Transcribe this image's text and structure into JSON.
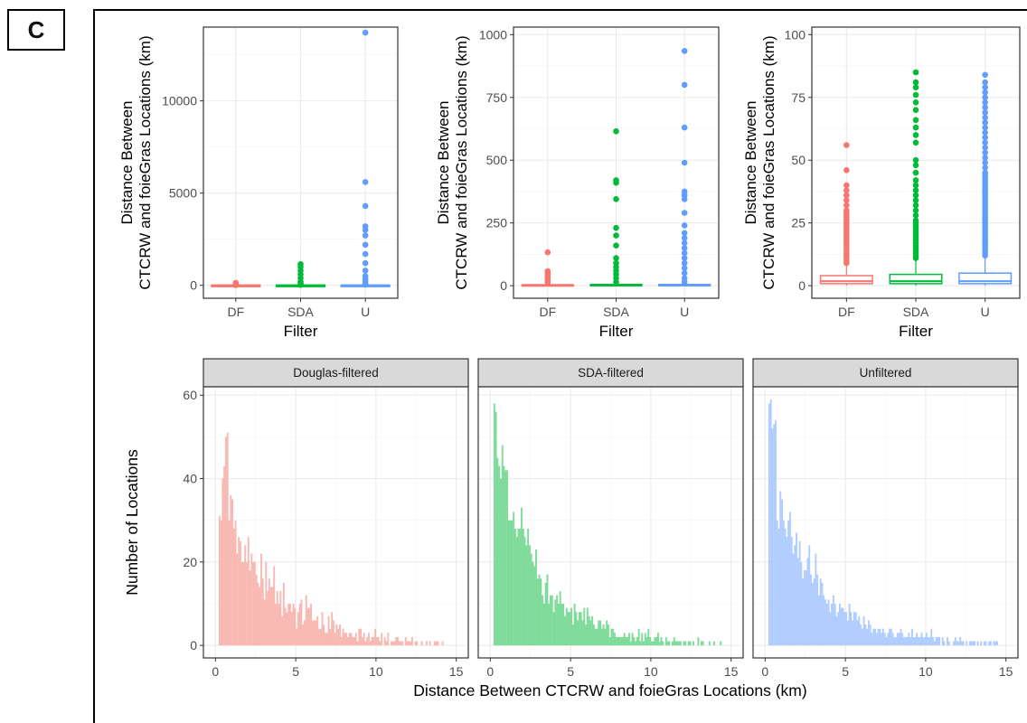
{
  "panel_label": "C",
  "colors": {
    "DF": "#f8766d",
    "SDA": "#00ba38",
    "U": "#619cff",
    "DF_fill": "#f8b9b3",
    "SDA_fill": "#7fdb9a",
    "U_fill": "#b0cdfe",
    "grid": "#ebebeb",
    "strip": "#d9d9d9"
  },
  "chart_data": [
    {
      "type": "box",
      "xlabel": "Filter",
      "ylabel": [
        "Distance Between",
        "CTCRW and foieGras Locations (km)"
      ],
      "categories": [
        "DF",
        "SDA",
        "U"
      ],
      "ylim": [
        -700,
        14000
      ],
      "yticks": [
        0,
        5000,
        10000
      ],
      "series": [
        {
          "category": "DF",
          "q1": 1,
          "median": 2,
          "q3": 4,
          "whisker_low": 0,
          "whisker_high": 8,
          "outliers": [
            10,
            20,
            35,
            56,
            80,
            110,
            135
          ]
        },
        {
          "category": "SDA",
          "q1": 1,
          "median": 2,
          "q3": 5,
          "whisker_low": 0,
          "whisker_high": 10,
          "outliers": [
            20,
            50,
            100,
            200,
            400,
            600,
            800,
            1000,
            1150
          ]
        },
        {
          "category": "U",
          "q1": 1,
          "median": 2,
          "q3": 5,
          "whisker_low": 0,
          "whisker_high": 10,
          "outliers": [
            30,
            80,
            200,
            350,
            500,
            800,
            1200,
            1700,
            2200,
            2700,
            3000,
            3200,
            4300,
            5600,
            13700
          ]
        }
      ]
    },
    {
      "type": "box",
      "xlabel": "Filter",
      "ylabel": [
        "Distance Between",
        "CTCRW and foieGras Locations (km)"
      ],
      "categories": [
        "DF",
        "SDA",
        "U"
      ],
      "ylim": [
        -50,
        1030
      ],
      "yticks": [
        0,
        250,
        500,
        750,
        1000
      ],
      "series": [
        {
          "category": "DF",
          "q1": 1,
          "median": 2,
          "q3": 4,
          "whisker_low": 0,
          "whisker_high": 8,
          "outliers": [
            12,
            20,
            28,
            35,
            45,
            52,
            58,
            133
          ]
        },
        {
          "category": "SDA",
          "q1": 1,
          "median": 2,
          "q3": 5,
          "whisker_low": 0,
          "whisker_high": 10,
          "outliers": [
            15,
            30,
            45,
            60,
            75,
            90,
            110,
            160,
            200,
            230,
            345,
            410,
            420,
            615
          ]
        },
        {
          "category": "U",
          "q1": 1,
          "median": 2,
          "q3": 5,
          "whisker_low": 0,
          "whisker_high": 10,
          "outliers": [
            15,
            30,
            50,
            70,
            90,
            110,
            130,
            150,
            170,
            190,
            210,
            240,
            290,
            345,
            360,
            375,
            490,
            630,
            800,
            935
          ]
        }
      ]
    },
    {
      "type": "box",
      "xlabel": "Filter",
      "ylabel": [
        "Distance Between",
        "CTCRW and foieGras Locations (km)"
      ],
      "categories": [
        "DF",
        "SDA",
        "U"
      ],
      "ylim": [
        -5,
        103
      ],
      "yticks": [
        0,
        25,
        50,
        75,
        100
      ],
      "series": [
        {
          "category": "DF",
          "q1": 0.8,
          "median": 1.8,
          "q3": 4,
          "whisker_low": 0,
          "whisker_high": 8.5,
          "outliers": [
            9,
            10,
            11,
            12,
            13,
            14,
            15,
            16,
            17,
            18,
            19,
            20,
            21,
            22,
            23,
            24,
            25,
            26,
            27,
            28,
            29,
            30,
            32,
            34,
            36,
            38,
            40,
            46,
            56
          ]
        },
        {
          "category": "SDA",
          "q1": 0.8,
          "median": 1.8,
          "q3": 4.5,
          "whisker_low": 0,
          "whisker_high": 10,
          "outliers": [
            11,
            12,
            13,
            14,
            15,
            16,
            17,
            18,
            19,
            20,
            21,
            22,
            23,
            24,
            25,
            26,
            28,
            30,
            32,
            34,
            36,
            38,
            40,
            42,
            45,
            48,
            50,
            57,
            60,
            63,
            66,
            70,
            73,
            76,
            79,
            81,
            85
          ]
        },
        {
          "category": "U",
          "q1": 0.8,
          "median": 1.8,
          "q3": 5,
          "whisker_low": 0,
          "whisker_high": 11,
          "outliers": [
            12,
            13,
            14,
            15,
            16,
            17,
            18,
            19,
            20,
            21,
            22,
            23,
            24,
            25,
            26,
            27,
            28,
            29,
            30,
            31,
            32,
            33,
            34,
            35,
            36,
            37,
            38,
            39,
            40,
            41,
            42,
            43,
            44,
            45,
            47,
            49,
            51,
            53,
            55,
            57,
            59,
            61,
            63,
            65,
            67,
            69,
            71,
            73,
            75,
            77,
            79,
            81,
            84
          ]
        }
      ]
    },
    {
      "type": "bar",
      "facets": [
        "Douglas-filtered",
        "SDA-filtered",
        "Unfiltered"
      ],
      "xlabel": "Distance Between CTCRW and foieGras Locations (km)",
      "ylabel": "Number of Locations",
      "xlim": [
        -0.75,
        15.75
      ],
      "ylim": [
        -3,
        62
      ],
      "xticks": [
        0,
        5,
        10,
        15
      ],
      "yticks": [
        0,
        20,
        40,
        60
      ],
      "bin_start": 0.2,
      "bin_width": 0.1,
      "series": [
        {
          "name": "Douglas-filtered",
          "values": [
            31,
            30,
            40,
            43,
            50,
            51,
            30,
            36,
            35,
            28,
            30,
            22,
            26,
            25,
            20,
            20,
            24,
            20,
            26,
            18,
            22,
            20,
            20,
            17,
            15,
            14,
            22,
            16,
            11,
            20,
            13,
            16,
            14,
            14,
            19,
            10,
            13,
            10,
            13,
            7,
            15,
            9,
            8,
            10,
            10,
            8,
            10,
            9,
            4,
            8,
            10,
            11,
            5,
            6,
            12,
            9,
            9,
            10,
            6,
            6,
            6,
            7,
            4,
            4,
            8,
            5,
            3,
            3,
            7,
            4,
            8,
            6,
            3,
            5,
            4,
            5,
            2,
            4,
            3,
            3,
            2,
            3,
            3,
            2,
            2,
            3,
            1,
            4,
            4,
            2,
            3,
            1,
            2,
            3,
            1,
            2,
            2,
            4,
            2,
            2,
            1,
            3,
            0,
            2,
            1,
            3,
            0,
            1,
            1,
            1,
            2,
            2,
            1,
            1,
            1,
            0,
            2,
            1,
            1,
            1,
            2,
            0,
            1,
            1,
            0,
            0,
            1,
            0,
            0,
            1,
            0,
            1,
            0,
            0,
            1,
            1,
            1,
            0,
            0,
            1,
            0,
            0,
            0,
            0,
            0,
            0
          ]
        },
        {
          "name": "SDA-filtered",
          "values": [
            58,
            56,
            45,
            43,
            40,
            48,
            43,
            42,
            42,
            30,
            30,
            30,
            32,
            28,
            26,
            28,
            28,
            33,
            28,
            26,
            24,
            28,
            24,
            22,
            20,
            19,
            23,
            16,
            17,
            16,
            12,
            10,
            15,
            17,
            10,
            12,
            12,
            8,
            11,
            12,
            10,
            13,
            10,
            10,
            7,
            9,
            8,
            8,
            9,
            5,
            10,
            8,
            6,
            8,
            8,
            6,
            9,
            5,
            9,
            7,
            6,
            7,
            5,
            4,
            4,
            6,
            6,
            4,
            5,
            4,
            6,
            5,
            2,
            4,
            4,
            3,
            2,
            2,
            2,
            2,
            2,
            3,
            2,
            2,
            3,
            1,
            3,
            2,
            1,
            2,
            4,
            1,
            3,
            1,
            3,
            2,
            4,
            2,
            1,
            1,
            2,
            2,
            3,
            1,
            2,
            1,
            0,
            2,
            1,
            1,
            0,
            1,
            2,
            1,
            1,
            1,
            1,
            0,
            1,
            1,
            0,
            1,
            1,
            0,
            1,
            0,
            0,
            2,
            0,
            1,
            1,
            0,
            0,
            0,
            1,
            0,
            0,
            1,
            0,
            0,
            0,
            1,
            0,
            0,
            0,
            0
          ]
        },
        {
          "name": "Unfiltered",
          "values": [
            58,
            59,
            52,
            53,
            54,
            30,
            28,
            37,
            35,
            30,
            28,
            26,
            30,
            32,
            26,
            22,
            24,
            27,
            21,
            25,
            20,
            16,
            18,
            18,
            21,
            24,
            17,
            15,
            16,
            22,
            17,
            12,
            16,
            15,
            12,
            11,
            10,
            11,
            8,
            10,
            12,
            10,
            7,
            8,
            10,
            9,
            9,
            8,
            8,
            6,
            10,
            8,
            6,
            8,
            8,
            6,
            7,
            5,
            4,
            7,
            5,
            4,
            6,
            5,
            3,
            4,
            4,
            3,
            4,
            4,
            3,
            4,
            3,
            2,
            3,
            4,
            4,
            3,
            2,
            2,
            3,
            3,
            4,
            3,
            2,
            2,
            2,
            3,
            2,
            4,
            2,
            2,
            3,
            2,
            2,
            3,
            2,
            2,
            3,
            2,
            2,
            4,
            2,
            1,
            2,
            2,
            2,
            0,
            2,
            1,
            0,
            2,
            1,
            0,
            0,
            1,
            2,
            1,
            1,
            2,
            1,
            1,
            0,
            1,
            0,
            1,
            1,
            1,
            1,
            0,
            1,
            0,
            1,
            0,
            1,
            1,
            0,
            1,
            1,
            0,
            1,
            1,
            1,
            0,
            0,
            0
          ]
        }
      ]
    }
  ]
}
